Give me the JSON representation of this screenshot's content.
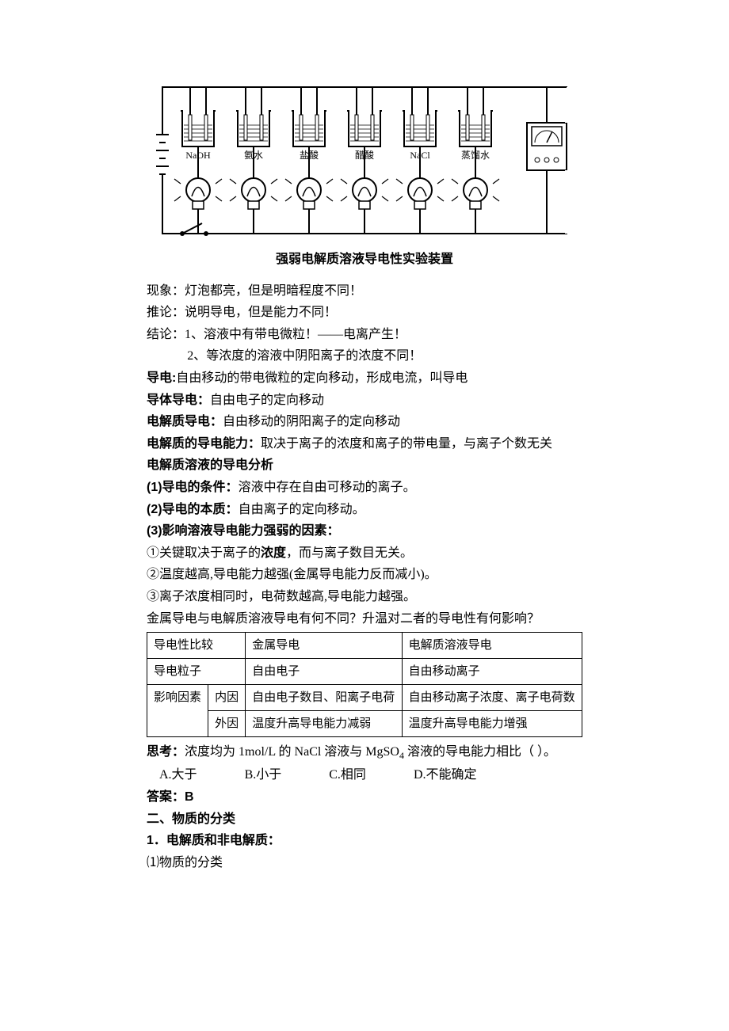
{
  "diagram": {
    "caption": "强弱电解质溶液导电性实验装置",
    "beakers": [
      "NaOH",
      "氨水",
      "盐酸",
      "醋酸",
      "NaCl",
      "蒸馏水"
    ],
    "stroke": "#000000",
    "bg": "#ffffff"
  },
  "body": {
    "phen_label": "现象：",
    "phen_text": "灯泡都亮，但是明暗程度不同！",
    "infer_label": "推论：",
    "infer_text": "说明导电，但是能力不同！",
    "concl_label": "结论：",
    "concl_1": "1、溶液中有带电微粒！——电离产生！",
    "concl_2": "2、等浓度的溶液中阴阳离子的浓度不同！",
    "conduct_label": "导电:",
    "conduct_text": "自由移动的带电微粒的定向移动，形成电流，叫导电",
    "conductor_label": "导体导电：",
    "conductor_text": "自由电子的定向移动",
    "elec_label": "电解质导电：",
    "elec_text": "自由移动的阴阳离子的定向移动",
    "ability_label": "电解质的导电能力：",
    "ability_text": "取决于离子的浓度和离子的带电量，与离子个数无关",
    "analysis_title": "电解质溶液的导电分析",
    "p1_label": "(1)导电的条件：",
    "p1_text": "溶液中存在自由可移动的离子。",
    "p2_label": "(2)导电的本质：",
    "p2_text": "自由离子的定向移动。",
    "p3_label": "(3)影响溶液导电能力强弱的因素：",
    "f1_pre": "①关键取决于离子的",
    "f1_bold": "浓度",
    "f1_post": "，而与离子数目无关。",
    "f2": "②温度越高,导电能力越强(金属导电能力反而减小)。",
    "f3": "③离子浓度相同时，电荷数越高,导电能力越强。",
    "compare_q": "金属导电与电解质溶液导电有何不同？升温对二者的导电性有何影响？"
  },
  "table": {
    "h1": "导电性比较",
    "h2": "金属导电",
    "h3": "电解质溶液导电",
    "r1c1": "导电粒子",
    "r1c2": "自由电子",
    "r1c3": "自由移动离子",
    "r2c1": "影响因素",
    "r2c2a": "内因",
    "r2c2b": "外因",
    "r2_in_metal": "自由电子数目、阳离子电荷",
    "r2_in_elec": "自由移动离子浓度、离子电荷数",
    "r2_out_metal": "温度升高导电能力减弱",
    "r2_out_elec": "温度升高导电能力增强"
  },
  "question": {
    "label": "思考：",
    "text_pre": "浓度均为 1mol/L 的 NaCl 溶液与 MgSO",
    "sub": "4",
    "text_post": " 溶液的导电能力相比（    ）。",
    "optA": "A.大于",
    "optB": "B.小于",
    "optC": "C.相同",
    "optD": "D.不能确定",
    "ans_label": "答案：",
    "ans_val": "B"
  },
  "section2": {
    "title": "二、物质的分类",
    "sub1": "1．电解质和非电解质：",
    "sub2": "⑴物质的分类"
  }
}
